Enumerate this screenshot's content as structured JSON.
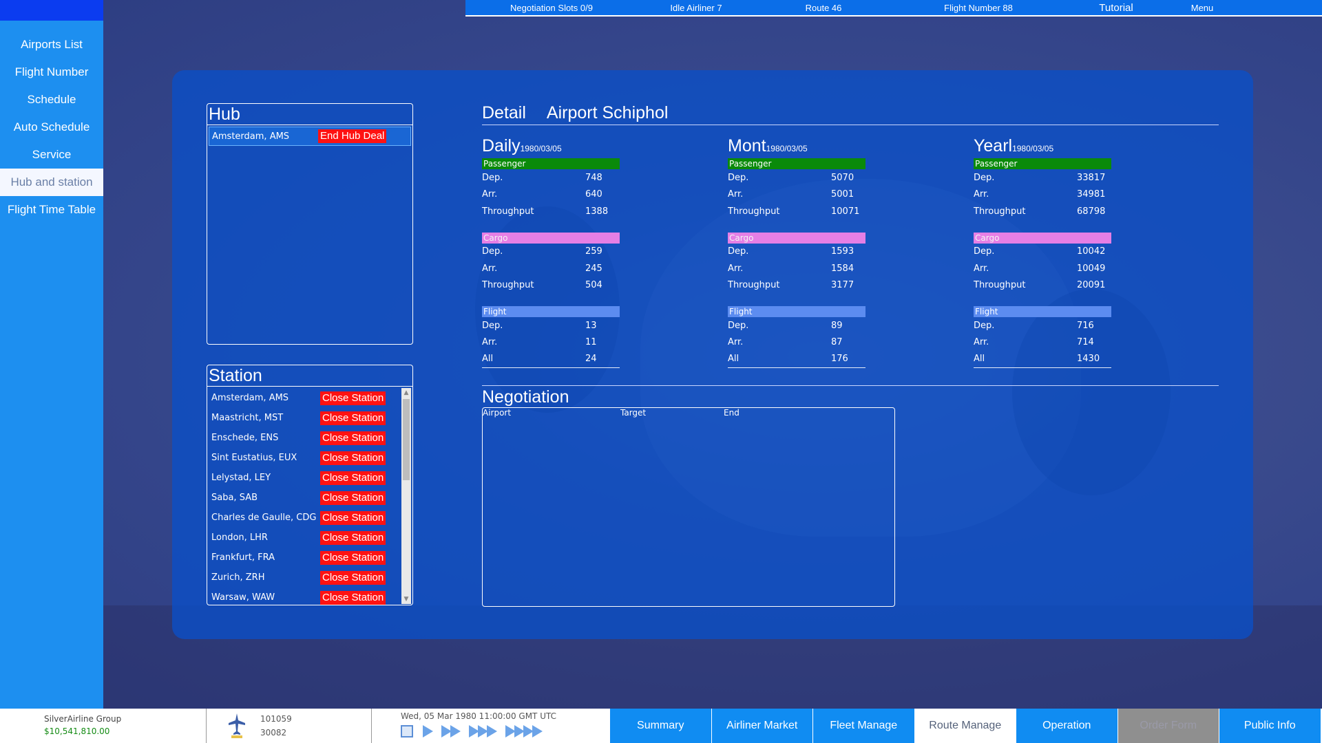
{
  "topbar": {
    "negotiation_slots": "Negotiation Slots 0/9",
    "idle_airliner": "Idle Airliner 7",
    "route": "Route 46",
    "flight_number": "Flight Number 88",
    "tutorial": "Tutorial",
    "menu": "Menu"
  },
  "sidebar": {
    "items": [
      {
        "label": "Airports List"
      },
      {
        "label": "Flight Number"
      },
      {
        "label": "Schedule"
      },
      {
        "label": "Auto Schedule"
      },
      {
        "label": "Service"
      },
      {
        "label": "Hub and station"
      },
      {
        "label": "Flight Time Table"
      }
    ],
    "active_index": 5
  },
  "hub": {
    "title": "Hub",
    "rows": [
      {
        "city": "Amsterdam, AMS",
        "action": "End Hub Deal"
      }
    ]
  },
  "station": {
    "title": "Station",
    "rows": [
      {
        "city": "Amsterdam, AMS",
        "action": "Close Station"
      },
      {
        "city": "Maastricht, MST",
        "action": "Close Station"
      },
      {
        "city": "Enschede, ENS",
        "action": "Close Station"
      },
      {
        "city": "Sint Eustatius, EUX",
        "action": "Close Station"
      },
      {
        "city": "Lelystad, LEY",
        "action": "Close Station"
      },
      {
        "city": "Saba, SAB",
        "action": "Close Station"
      },
      {
        "city": "Charles de Gaulle, CDG",
        "action": "Close Station"
      },
      {
        "city": "London, LHR",
        "action": "Close Station"
      },
      {
        "city": "Frankfurt, FRA",
        "action": "Close Station"
      },
      {
        "city": "Zurich, ZRH",
        "action": "Close Station"
      },
      {
        "city": "Warsaw, WAW",
        "action": "Close Station"
      }
    ]
  },
  "detail": {
    "title": "Detail",
    "airport": "Airport Schiphol",
    "labels": {
      "passenger": "Passenger",
      "cargo": "Cargo",
      "flight": "Flight",
      "dep": "Dep.",
      "arr": "Arr.",
      "throughput": "Throughput",
      "all": "All"
    },
    "columns": [
      {
        "title": "Daily",
        "date": "1980/03/05",
        "passenger": {
          "dep": "748",
          "arr": "640",
          "throughput": "1388"
        },
        "cargo": {
          "dep": "259",
          "arr": "245",
          "throughput": "504"
        },
        "flight": {
          "dep": "13",
          "arr": "11",
          "all": "24"
        }
      },
      {
        "title": "Mont",
        "date": "1980/03/05",
        "passenger": {
          "dep": "5070",
          "arr": "5001",
          "throughput": "10071"
        },
        "cargo": {
          "dep": "1593",
          "arr": "1584",
          "throughput": "3177"
        },
        "flight": {
          "dep": "89",
          "arr": "87",
          "all": "176"
        }
      },
      {
        "title": "Yearl",
        "date": "1980/03/05",
        "passenger": {
          "dep": "33817",
          "arr": "34981",
          "throughput": "68798"
        },
        "cargo": {
          "dep": "10042",
          "arr": "10049",
          "throughput": "20091"
        },
        "flight": {
          "dep": "716",
          "arr": "714",
          "all": "1430"
        }
      }
    ]
  },
  "negotiation": {
    "title": "Negotiation",
    "columns": [
      "Airport",
      "Target",
      "End"
    ]
  },
  "bottombar": {
    "company_name": "SilverAirline Group",
    "money": "$10,541,810.00",
    "count_top": "101059",
    "count_bottom": "30082",
    "datetime": "Wed, 05 Mar 1980 11:00:00 GMT UTC",
    "tabs": [
      {
        "label": "Summary",
        "state": "normal"
      },
      {
        "label": "Airliner Market",
        "state": "normal"
      },
      {
        "label": "Fleet Manage",
        "state": "normal"
      },
      {
        "label": "Route Manage",
        "state": "active"
      },
      {
        "label": "Operation",
        "state": "normal"
      },
      {
        "label": "Order Form",
        "state": "disabled"
      },
      {
        "label": "Public Info",
        "state": "normal"
      }
    ]
  },
  "colors": {
    "panel": "#0a50c8",
    "sidebar": "#1d8ff0",
    "close_button": "#ff1212",
    "passenger_bar": "#0a8a0a",
    "cargo_bar": "#e57fe5",
    "flight_bar": "#5c8cf0",
    "money": "#148b14"
  }
}
